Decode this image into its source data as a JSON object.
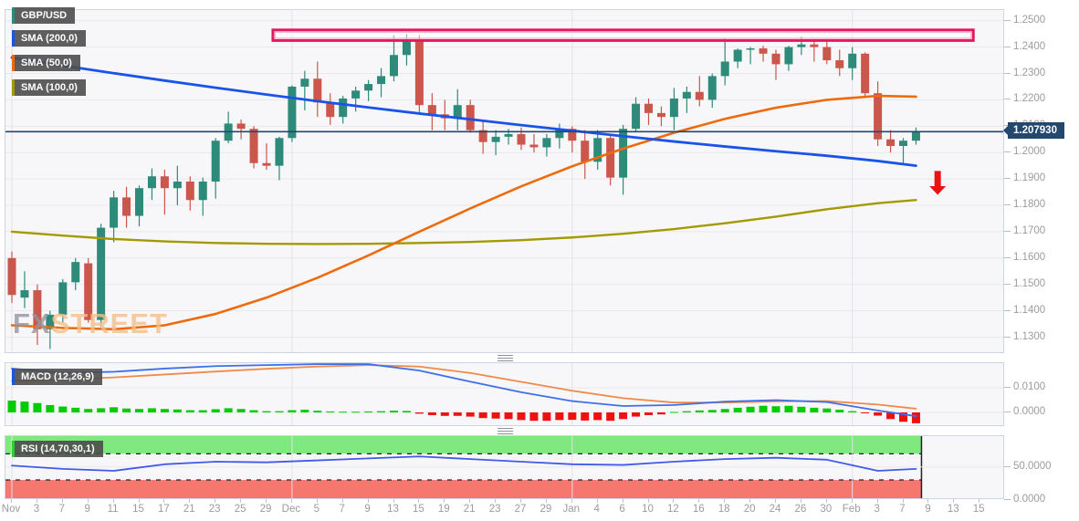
{
  "legend": {
    "symbol": {
      "label": "GBP/USD",
      "color": "#2e8b7a"
    },
    "sma200": {
      "label": "SMA (200,0)",
      "color": "#1a53e8"
    },
    "sma50": {
      "label": "SMA (50,0)",
      "color": "#ee6b0d"
    },
    "sma100": {
      "label": "SMA (100,0)",
      "color": "#a29a00"
    },
    "macd": {
      "label": "MACD (12,26,9)",
      "color": "#1a53e8"
    },
    "rsi": {
      "label": "RSI (14,70,30,1)",
      "color": "#2ecc2e"
    }
  },
  "watermark": {
    "fx": "FX",
    "street": "STREET"
  },
  "price_scale": {
    "current_price": "1.207930",
    "ticks": [
      "1.2500",
      "1.2400",
      "1.2300",
      "1.2200",
      "1.2100",
      "1.2000",
      "1.1900",
      "1.1800",
      "1.1700",
      "1.1600",
      "1.1500",
      "1.1400",
      "1.1300"
    ]
  },
  "macd_scale": {
    "ticks": [
      "0.0100",
      "0.0000"
    ]
  },
  "rsi_scale": {
    "ticks": [
      "50.0000",
      "0.0000"
    ]
  },
  "x_axis": {
    "labels": [
      "Nov",
      "3",
      "7",
      "9",
      "11",
      "15",
      "17",
      "21",
      "23",
      "25",
      "29",
      "Dec",
      "5",
      "7",
      "9",
      "13",
      "15",
      "19",
      "21",
      "23",
      "27",
      "29",
      "Jan",
      "4",
      "6",
      "10",
      "12",
      "16",
      "18",
      "20",
      "24",
      "26",
      "30",
      "Feb",
      "3",
      "7",
      "9",
      "13",
      "15"
    ]
  },
  "chart_data": {
    "type": "candlestick",
    "symbol": "GBP/USD",
    "interval": "daily",
    "ylim": [
      1.13,
      1.25
    ],
    "y_step": 0.01,
    "current_price": 1.20793,
    "candles": [
      [
        "Nov 1",
        1.16,
        1.1625,
        1.143,
        1.146
      ],
      [
        "Nov 2",
        1.145,
        1.155,
        1.141,
        1.1478
      ],
      [
        "Nov 3",
        1.1478,
        1.15,
        1.127,
        1.133
      ],
      [
        "Nov 4",
        1.133,
        1.14,
        1.1255,
        1.1385
      ],
      [
        "Nov 7",
        1.1385,
        1.152,
        1.1355,
        1.1508
      ],
      [
        "Nov 8",
        1.1508,
        1.16,
        1.1478,
        1.1585
      ],
      [
        "Nov 9",
        1.158,
        1.16,
        1.1355,
        1.1365
      ],
      [
        "Nov 10",
        1.1365,
        1.173,
        1.134,
        1.1715
      ],
      [
        "Nov 11",
        1.1715,
        1.1855,
        1.166,
        1.183
      ],
      [
        "Nov 14",
        1.183,
        1.187,
        1.1715,
        1.176
      ],
      [
        "Nov 15",
        1.176,
        1.1875,
        1.172,
        1.1865
      ],
      [
        "Nov 16",
        1.1865,
        1.194,
        1.182,
        1.191
      ],
      [
        "Nov 17",
        1.191,
        1.1935,
        1.1765,
        1.1865
      ],
      [
        "Nov 18",
        1.1865,
        1.195,
        1.18,
        1.189
      ],
      [
        "Nov 21",
        1.189,
        1.191,
        1.178,
        1.182
      ],
      [
        "Nov 22",
        1.182,
        1.1905,
        1.176,
        1.189
      ],
      [
        "Nov 23",
        1.189,
        1.2055,
        1.1825,
        1.2045
      ],
      [
        "Nov 24",
        1.2045,
        1.2155,
        1.2035,
        1.211
      ],
      [
        "Nov 25",
        1.211,
        1.2125,
        1.205,
        1.209
      ],
      [
        "Nov 28",
        1.209,
        1.21,
        1.194,
        1.196
      ],
      [
        "Nov 29",
        1.196,
        1.2035,
        1.1935,
        1.195
      ],
      [
        "Nov 30",
        1.195,
        1.206,
        1.1895,
        1.2055
      ],
      [
        "Dec 1",
        1.2055,
        1.2255,
        1.204,
        1.225
      ],
      [
        "Dec 2",
        1.225,
        1.231,
        1.216,
        1.228
      ],
      [
        "Dec 5",
        1.228,
        1.2345,
        1.2135,
        1.219
      ],
      [
        "Dec 6",
        1.219,
        1.2225,
        1.2105,
        1.2135
      ],
      [
        "Dec 7",
        1.2135,
        1.2215,
        1.211,
        1.2205
      ],
      [
        "Dec 8",
        1.2205,
        1.225,
        1.2155,
        1.2235
      ],
      [
        "Dec 9",
        1.2235,
        1.2275,
        1.2195,
        1.226
      ],
      [
        "Dec 12",
        1.226,
        1.232,
        1.221,
        1.229
      ],
      [
        "Dec 13",
        1.229,
        1.2445,
        1.227,
        1.237
      ],
      [
        "Dec 14",
        1.237,
        1.245,
        1.233,
        1.2425
      ],
      [
        "Dec 15",
        1.2425,
        1.2445,
        1.215,
        1.218
      ],
      [
        "Dec 16",
        1.218,
        1.2225,
        1.2085,
        1.214
      ],
      [
        "Dec 19",
        1.2145,
        1.22,
        1.2085,
        1.213
      ],
      [
        "Dec 20",
        1.213,
        1.224,
        1.2085,
        1.218
      ],
      [
        "Dec 21",
        1.218,
        1.22,
        1.2075,
        1.2085
      ],
      [
        "Dec 22",
        1.2085,
        1.212,
        1.1995,
        1.204
      ],
      [
        "Dec 23",
        1.204,
        1.2085,
        1.199,
        1.206
      ],
      [
        "Dec 26",
        1.206,
        1.209,
        1.203,
        1.207
      ],
      [
        "Dec 27",
        1.207,
        1.2095,
        1.201,
        1.203
      ],
      [
        "Dec 28",
        1.203,
        1.207,
        1.2,
        1.202
      ],
      [
        "Dec 29",
        1.202,
        1.207,
        1.1985,
        1.2055
      ],
      [
        "Dec 30",
        1.2055,
        1.211,
        1.2015,
        1.209
      ],
      [
        "Jan 2",
        1.209,
        1.21,
        1.2,
        1.2045
      ],
      [
        "Jan 3",
        1.2045,
        1.2085,
        1.19,
        1.1965
      ],
      [
        "Jan 4",
        1.1965,
        1.2085,
        1.1935,
        1.2055
      ],
      [
        "Jan 5",
        1.2055,
        1.2065,
        1.1875,
        1.1905
      ],
      [
        "Jan 6",
        1.1905,
        1.2105,
        1.184,
        1.209
      ],
      [
        "Jan 9",
        1.209,
        1.221,
        1.208,
        1.2185
      ],
      [
        "Jan 10",
        1.2185,
        1.2205,
        1.2105,
        1.215
      ],
      [
        "Jan 11",
        1.215,
        1.2175,
        1.21,
        1.2135
      ],
      [
        "Jan 12",
        1.2135,
        1.2245,
        1.2085,
        1.2205
      ],
      [
        "Jan 13",
        1.2205,
        1.225,
        1.215,
        1.223
      ],
      [
        "Jan 16",
        1.223,
        1.229,
        1.2175,
        1.22
      ],
      [
        "Jan 17",
        1.22,
        1.23,
        1.217,
        1.229
      ],
      [
        "Jan 18",
        1.229,
        1.2435,
        1.2255,
        1.2345
      ],
      [
        "Jan 19",
        1.2345,
        1.2395,
        1.232,
        1.239
      ],
      [
        "Jan 20",
        1.239,
        1.24,
        1.2335,
        1.2395
      ],
      [
        "Jan 23",
        1.2395,
        1.2405,
        1.2345,
        1.2375
      ],
      [
        "Jan 24",
        1.2375,
        1.239,
        1.2275,
        1.2335
      ],
      [
        "Jan 25",
        1.2335,
        1.2405,
        1.231,
        1.24
      ],
      [
        "Jan 26",
        1.24,
        1.244,
        1.237,
        1.241
      ],
      [
        "Jan 27",
        1.241,
        1.2425,
        1.2345,
        1.24
      ],
      [
        "Jan 30",
        1.24,
        1.242,
        1.2335,
        1.235
      ],
      [
        "Jan 31",
        1.235,
        1.239,
        1.229,
        1.232
      ],
      [
        "Feb 1",
        1.232,
        1.24,
        1.2275,
        1.2375
      ],
      [
        "Feb 2",
        1.2375,
        1.238,
        1.221,
        1.2225
      ],
      [
        "Feb 3",
        1.2225,
        1.227,
        1.2025,
        1.205
      ],
      [
        "Feb 6",
        1.205,
        1.2085,
        1.2,
        1.2025
      ],
      [
        "Feb 7",
        1.2025,
        1.2055,
        1.196,
        1.2045
      ],
      [
        "Feb 8",
        1.2045,
        1.2095,
        1.203,
        1.2079
      ]
    ],
    "sample_indices": [
      0,
      4,
      8,
      12,
      16,
      20,
      24,
      28,
      32,
      36,
      40,
      44,
      48,
      52,
      56,
      60,
      64,
      68,
      71
    ],
    "sma200": [
      1.236,
      1.233,
      1.2301,
      1.2273,
      1.2246,
      1.222,
      1.2195,
      1.2171,
      1.2148,
      1.2126,
      1.2104,
      1.2083,
      1.2062,
      1.2042,
      1.2023,
      1.2005,
      1.1988,
      1.1968,
      1.195
    ],
    "sma50": [
      1.1345,
      1.1335,
      1.133,
      1.1345,
      1.1388,
      1.145,
      1.1525,
      1.161,
      1.17,
      1.1788,
      1.1872,
      1.1948,
      1.2015,
      1.2075,
      1.2128,
      1.217,
      1.22,
      1.2215,
      1.2212
    ],
    "sma100": [
      1.17,
      1.1685,
      1.1672,
      1.1663,
      1.1657,
      1.1654,
      1.1653,
      1.1654,
      1.1657,
      1.1661,
      1.1668,
      1.1678,
      1.1692,
      1.171,
      1.1732,
      1.1757,
      1.1785,
      1.1808,
      1.182
    ],
    "resistance_zone": {
      "price_top": 1.2465,
      "price_bottom": 1.2425,
      "start_index": 21,
      "end_index": 75.5
    },
    "sell_arrow": {
      "index": 72.7,
      "price_from": 1.193,
      "price_to": 1.184
    },
    "macd": {
      "params": "12,26,9",
      "ylim": [
        -0.006,
        0.021
      ],
      "histogram": [
        0.0048,
        0.0044,
        0.0038,
        0.003,
        0.0024,
        0.0019,
        0.0014,
        0.0017,
        0.0021,
        0.0016,
        0.0014,
        0.0017,
        0.0014,
        0.0012,
        0.0009,
        0.0009,
        0.0013,
        0.0017,
        0.0014,
        0.0009,
        0.0005,
        0.0005,
        0.0009,
        0.0011,
        0.0007,
        0.0004,
        0.0003,
        0.0003,
        0.0004,
        0.0005,
        0.0007,
        0.0006,
        -0.0005,
        -0.0011,
        -0.0014,
        -0.0014,
        -0.0017,
        -0.0023,
        -0.0025,
        -0.0027,
        -0.0031,
        -0.0034,
        -0.0034,
        -0.0031,
        -0.003,
        -0.0033,
        -0.0031,
        -0.0034,
        -0.0027,
        -0.0017,
        -0.0011,
        -0.0008,
        0.0002,
        0.0005,
        0.0008,
        0.001,
        0.0014,
        0.0019,
        0.0023,
        0.0027,
        0.0025,
        0.0027,
        0.0023,
        0.0019,
        0.0016,
        0.0011,
        0.0005,
        -0.0003,
        -0.0013,
        -0.0027,
        -0.0038,
        -0.0044
      ],
      "macd_line": [
        0.0178,
        0.016,
        0.0165,
        0.0178,
        0.0188,
        0.0192,
        0.0196,
        0.0196,
        0.017,
        0.0125,
        0.0082,
        0.0046,
        0.0026,
        0.003,
        0.0044,
        0.005,
        0.0042,
        0.0008,
        -0.0015
      ],
      "signal_line": [
        0.0128,
        0.0133,
        0.0142,
        0.0154,
        0.0166,
        0.0177,
        0.0186,
        0.0192,
        0.0186,
        0.016,
        0.0124,
        0.0088,
        0.0058,
        0.004,
        0.004,
        0.0045,
        0.0046,
        0.0032,
        0.0015
      ]
    },
    "rsi": {
      "params": "14,70,30,1",
      "ylim": [
        0,
        100
      ],
      "overbought": 70,
      "oversold": 30,
      "values": [
        52,
        47,
        44,
        54,
        58,
        57,
        60,
        63,
        66,
        62,
        58,
        54,
        53,
        58,
        62,
        64,
        61,
        44,
        47
      ]
    },
    "colors": {
      "up": "#2e8b7a",
      "down": "#cb564c",
      "sma200": "#1a53e8",
      "sma50": "#ee6b0d",
      "sma100": "#a29a00",
      "hist_up": "#00cc00",
      "hist_down": "#ee1111",
      "macd_line": "#3f6fe8",
      "signal_line": "#f08a4a",
      "rsi_line": "#3f5be8",
      "band_green": "#7fe87f",
      "band_red": "#f5776e",
      "zone": "#e5175e",
      "zone_inner": "#f8a9c4",
      "arrow": "#ee1111",
      "price_line": "#24476e",
      "grid": "#e9e9ed",
      "month_grid": "#e2e2e8"
    }
  }
}
